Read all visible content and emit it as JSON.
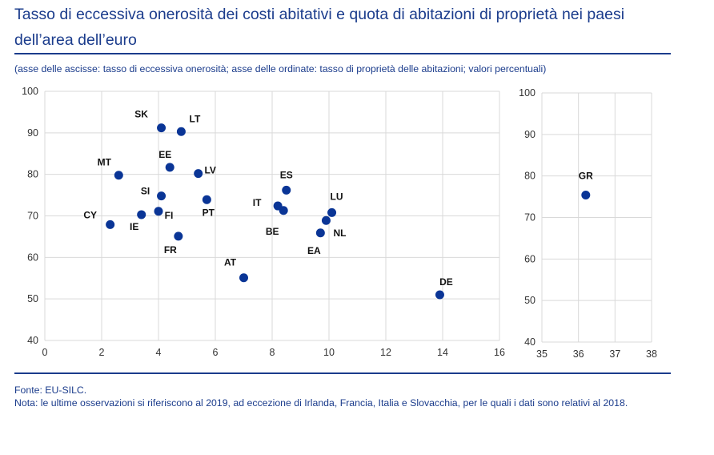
{
  "title": "Tasso di eccessiva onerosità dei costi abitativi e quota di abitazioni di proprietà nei paesi dell’area dell’euro",
  "subtitle": "(asse delle ascisse: tasso di eccessiva onerosità; asse delle ordinate: tasso di proprietà delle abitazioni; valori percentuali)",
  "source": "Fonte: EU-SILC.",
  "note": "Nota: le ultime osservazioni si riferiscono al 2019, ad eccezione di Irlanda, Francia, Italia e Slovacchia, per le quali i dati sono relativi al 2018.",
  "colors": {
    "accent": "#1b3c8c",
    "marker": "#0a3596",
    "grid": "#d9d9d9"
  },
  "chart_data": [
    {
      "type": "scatter",
      "xlim": [
        0,
        16
      ],
      "ylim": [
        40,
        100
      ],
      "xticks": [
        "0",
        "2",
        "4",
        "6",
        "8",
        "10",
        "12",
        "14",
        "16"
      ],
      "yticks": [
        "40",
        "50",
        "60",
        "70",
        "80",
        "90",
        "100"
      ],
      "grid": true,
      "points": [
        {
          "label": "SK",
          "x": 4.1,
          "y": 91.2
        },
        {
          "label": "LT",
          "x": 4.8,
          "y": 90.3
        },
        {
          "label": "EE",
          "x": 4.4,
          "y": 81.7
        },
        {
          "label": "MT",
          "x": 2.6,
          "y": 79.8
        },
        {
          "label": "LV",
          "x": 5.4,
          "y": 80.2
        },
        {
          "label": "SI",
          "x": 4.1,
          "y": 74.8
        },
        {
          "label": "PT",
          "x": 5.7,
          "y": 73.9
        },
        {
          "label": "ES",
          "x": 8.5,
          "y": 76.2
        },
        {
          "label": "IT",
          "x": 8.2,
          "y": 72.4
        },
        {
          "label": "BE",
          "x": 8.4,
          "y": 71.3
        },
        {
          "label": "LU",
          "x": 10.1,
          "y": 70.8
        },
        {
          "label": "NL",
          "x": 9.9,
          "y": 68.9
        },
        {
          "label": "EA",
          "x": 9.7,
          "y": 65.9
        },
        {
          "label": "FI",
          "x": 4.0,
          "y": 71.1
        },
        {
          "label": "IE",
          "x": 3.4,
          "y": 70.3
        },
        {
          "label": "CY",
          "x": 2.3,
          "y": 67.9
        },
        {
          "label": "FR",
          "x": 4.7,
          "y": 65.1
        },
        {
          "label": "AT",
          "x": 7.0,
          "y": 55.1
        },
        {
          "label": "DE",
          "x": 13.9,
          "y": 51.0
        }
      ]
    },
    {
      "type": "scatter",
      "xlim": [
        35,
        38
      ],
      "ylim": [
        40,
        100
      ],
      "xticks": [
        "35",
        "36",
        "37",
        "38"
      ],
      "yticks": [
        "40",
        "50",
        "60",
        "70",
        "80",
        "90",
        "100"
      ],
      "grid": true,
      "points": [
        {
          "label": "GR",
          "x": 36.2,
          "y": 75.4
        }
      ]
    }
  ]
}
